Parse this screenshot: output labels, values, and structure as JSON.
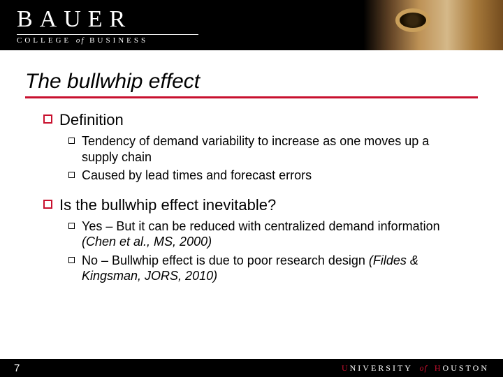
{
  "colors": {
    "accent_red": "#c8102e",
    "black": "#000000",
    "white": "#ffffff"
  },
  "header": {
    "brand_top": "BAUER",
    "brand_sub_left": "COLLEGE",
    "brand_sub_of": "of",
    "brand_sub_right": "BUSINESS"
  },
  "slide": {
    "title": "The bullwhip effect",
    "sections": [
      {
        "heading": "Definition",
        "items": [
          {
            "text": "Tendency of demand variability to increase as one moves up a supply chain"
          },
          {
            "text": "Caused by lead times and forecast errors"
          }
        ]
      },
      {
        "heading": "Is the bullwhip effect inevitable?",
        "items": [
          {
            "text": "Yes – But it can be reduced with centralized demand information ",
            "cite": "(Chen et al., MS, 2000)"
          },
          {
            "text": "No – Bullwhip effect is due to poor research design ",
            "cite": "(Fildes & Kingsman, JORS, 2010)"
          }
        ]
      }
    ],
    "page_number": "7"
  },
  "footer": {
    "university_1": "UNIVERSITY",
    "university_of": "of",
    "university_2": "HOUSTON"
  }
}
